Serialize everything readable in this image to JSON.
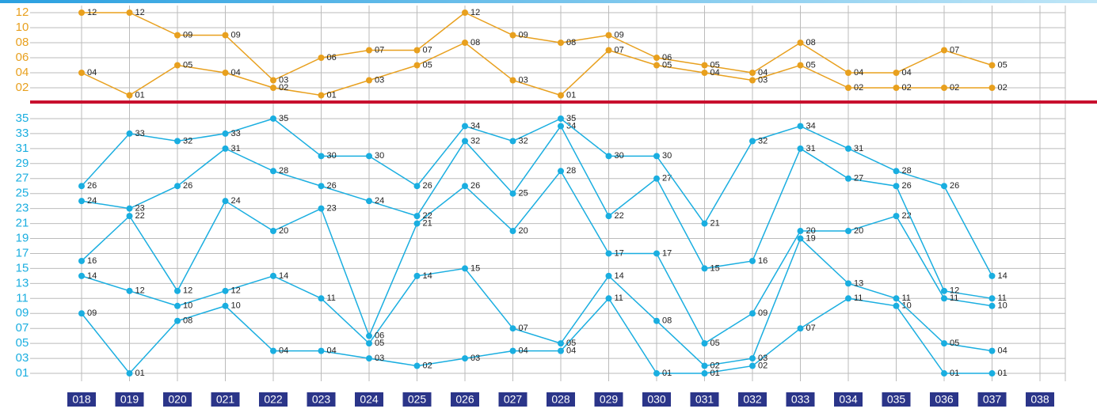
{
  "chart_data": [
    {
      "type": "line",
      "ylim": [
        0.5,
        12.5
      ],
      "yticks": [
        12,
        10,
        {
          "value": 8,
          "label": "08"
        },
        {
          "value": 6,
          "label": "06"
        },
        {
          "value": 4,
          "label": "04"
        },
        {
          "value": 2,
          "label": "02"
        }
      ],
      "grid": true,
      "series": [
        {
          "color": "#e8a01e",
          "values": [
            12,
            12,
            9,
            9,
            3,
            6,
            7,
            7,
            12,
            9,
            8,
            9,
            6,
            5,
            4,
            8,
            4,
            4,
            7,
            5,
            null
          ],
          "value_labels": [
            "12",
            "12",
            "09",
            "09",
            "03",
            "06",
            "07",
            "07",
            "12",
            "09",
            "08",
            "09",
            "06",
            "05",
            "04",
            "08",
            "04",
            "04",
            "07",
            "05",
            null
          ]
        },
        {
          "color": "#e8a01e",
          "values": [
            4,
            1,
            5,
            4,
            2,
            1,
            3,
            5,
            8,
            3,
            1,
            7,
            5,
            4,
            3,
            5,
            2,
            2,
            2,
            2,
            null
          ],
          "value_labels": [
            "04",
            "01",
            "05",
            "04",
            "02",
            "01",
            "03",
            "05",
            "08",
            "03",
            "01",
            "07",
            "05",
            "04",
            "03",
            "05",
            "02",
            "02",
            "02",
            "02",
            null
          ]
        }
      ]
    },
    {
      "type": "line",
      "ylim": [
        0,
        36
      ],
      "yticks": [
        35,
        33,
        31,
        29,
        27,
        25,
        23,
        21,
        19,
        17,
        15,
        13,
        11,
        {
          "value": 9,
          "label": "09"
        },
        {
          "value": 7,
          "label": "07"
        },
        {
          "value": 5,
          "label": "05"
        },
        {
          "value": 3,
          "label": "03"
        },
        {
          "value": 1,
          "label": "01"
        }
      ],
      "grid": true,
      "categories": [
        "018",
        "019",
        "020",
        "021",
        "022",
        "023",
        "024",
        "025",
        "026",
        "027",
        "028",
        "029",
        "030",
        "031",
        "032",
        "033",
        "034",
        "035",
        "036",
        "037",
        "038"
      ],
      "series": [
        {
          "color": "#1aaee0",
          "values": [
            9,
            1,
            8,
            10,
            4,
            4,
            3,
            2,
            3,
            4,
            4,
            11,
            1,
            1,
            2,
            7,
            11,
            10,
            1,
            1,
            null
          ],
          "value_labels": [
            "09",
            "01",
            "08",
            "10",
            "04",
            "04",
            "03",
            "02",
            "03",
            "04",
            "04",
            "11",
            "01",
            "01",
            "02",
            "07",
            "11",
            "10",
            "01",
            "01",
            null
          ]
        },
        {
          "color": "#1aaee0",
          "values": [
            14,
            12,
            10,
            12,
            14,
            11,
            5,
            14,
            15,
            7,
            5,
            14,
            8,
            2,
            3,
            19,
            13,
            11,
            5,
            4,
            null
          ],
          "value_labels": [
            "14",
            "12",
            "10",
            "12",
            "14",
            "11",
            "05",
            "14",
            "15",
            "07",
            "05",
            "14",
            "08",
            "02",
            "03",
            "19",
            "13",
            "11",
            "05",
            "04",
            null
          ]
        },
        {
          "color": "#1aaee0",
          "values": [
            16,
            22,
            12,
            24,
            20,
            23,
            6,
            21,
            26,
            20,
            28,
            17,
            17,
            5,
            9,
            20,
            20,
            22,
            11,
            10,
            null
          ],
          "value_labels": [
            "16",
            "22",
            "12",
            "24",
            "20",
            "23",
            "06",
            "21",
            "26",
            "20",
            "28",
            "17",
            "17",
            "05",
            "09",
            "20",
            "20",
            "22",
            "11",
            "10",
            null
          ]
        },
        {
          "color": "#1aaee0",
          "values": [
            24,
            23,
            26,
            31,
            28,
            26,
            24,
            22,
            32,
            25,
            34,
            22,
            27,
            15,
            16,
            31,
            27,
            26,
            12,
            11,
            null
          ],
          "value_labels": [
            "24",
            "23",
            "26",
            "31",
            "28",
            "26",
            "24",
            "22",
            "32",
            "25",
            "34",
            "22",
            "27",
            "15",
            "16",
            "31",
            "27",
            "26",
            "12",
            "11",
            null
          ]
        },
        {
          "color": "#1aaee0",
          "values": [
            26,
            33,
            32,
            33,
            35,
            30,
            30,
            26,
            34,
            32,
            35,
            30,
            30,
            21,
            32,
            34,
            31,
            28,
            26,
            14,
            null
          ],
          "value_labels": [
            "26",
            "33",
            "32",
            "33",
            "35",
            "30",
            "30",
            "26",
            "34",
            "32",
            "35",
            "30",
            "30",
            "21",
            "32",
            "34",
            "31",
            "28",
            "26",
            "14",
            null
          ]
        }
      ]
    }
  ]
}
